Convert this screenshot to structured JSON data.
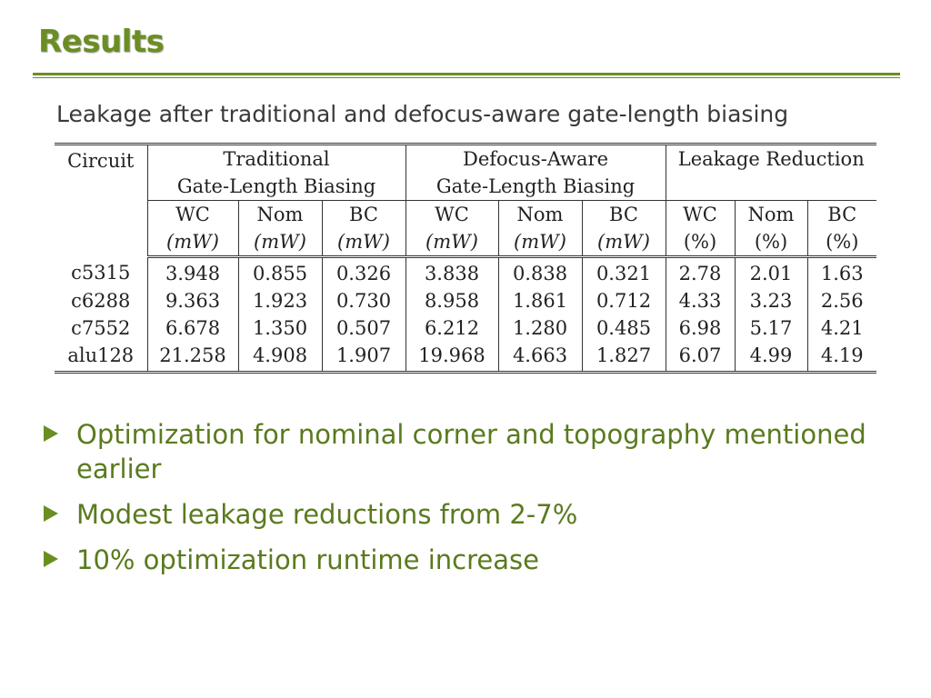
{
  "slide": {
    "title": "Results",
    "subtitle": "Leakage after traditional and defocus-aware gate-length biasing"
  },
  "table": {
    "circuit_header": "Circuit",
    "groups": [
      {
        "line1": "Traditional",
        "line2": "Gate-Length Biasing"
      },
      {
        "line1": "Defocus-Aware",
        "line2": "Gate-Length Biasing"
      },
      {
        "line1": "Leakage Reduction",
        "line2": ""
      }
    ],
    "subheaders": [
      {
        "name": "WC",
        "unit": "(mW)"
      },
      {
        "name": "Nom",
        "unit": "(mW)"
      },
      {
        "name": "BC",
        "unit": "(mW)"
      },
      {
        "name": "WC",
        "unit": "(mW)"
      },
      {
        "name": "Nom",
        "unit": "(mW)"
      },
      {
        "name": "BC",
        "unit": "(mW)"
      },
      {
        "name": "WC",
        "unit": "(%)"
      },
      {
        "name": "Nom",
        "unit": "(%)"
      },
      {
        "name": "BC",
        "unit": "(%)"
      }
    ],
    "rows": [
      [
        "c5315",
        "3.948",
        "0.855",
        "0.326",
        "3.838",
        "0.838",
        "0.321",
        "2.78",
        "2.01",
        "1.63"
      ],
      [
        "c6288",
        "9.363",
        "1.923",
        "0.730",
        "8.958",
        "1.861",
        "0.712",
        "4.33",
        "3.23",
        "2.56"
      ],
      [
        "c7552",
        "6.678",
        "1.350",
        "0.507",
        "6.212",
        "1.280",
        "0.485",
        "6.98",
        "5.17",
        "4.21"
      ],
      [
        "alu128",
        "21.258",
        "4.908",
        "1.907",
        "19.968",
        "4.663",
        "1.827",
        "6.07",
        "4.99",
        "4.19"
      ]
    ]
  },
  "bullets": [
    "Optimization for nominal corner and topography mentioned earlier",
    "Modest leakage reductions from 2-7%",
    "10% optimization runtime increase"
  ],
  "colors": {
    "accent": "#6b8e23",
    "bullet_text": "#5a7a1e"
  },
  "icons": {
    "bullet": "triangle-right-icon"
  }
}
